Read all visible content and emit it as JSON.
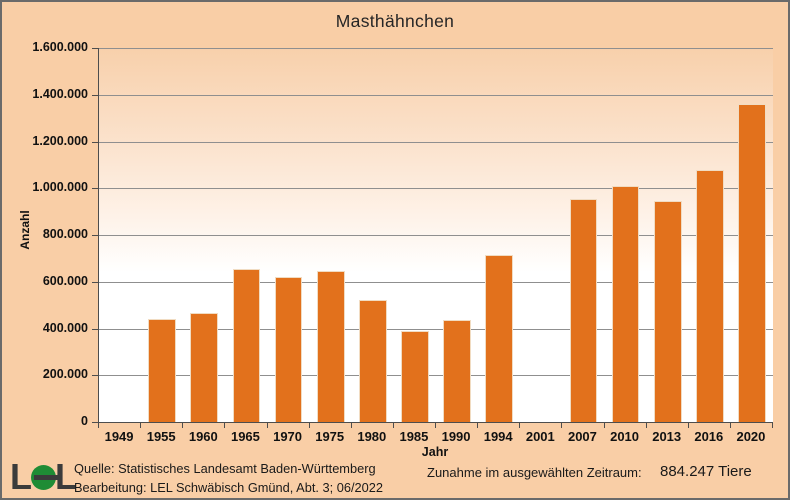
{
  "chart_data": {
    "type": "bar",
    "title": "Masthähnchen",
    "xlabel": "Jahr",
    "ylabel": "Anzahl",
    "categories": [
      "1949",
      "1955",
      "1960",
      "1965",
      "1970",
      "1975",
      "1980",
      "1985",
      "1990",
      "1994",
      "2001",
      "2007",
      "2010",
      "2013",
      "2016",
      "2020"
    ],
    "values": [
      0,
      441000,
      466000,
      655000,
      620000,
      646000,
      522000,
      390000,
      436000,
      714000,
      0,
      955000,
      1010000,
      945000,
      1080000,
      1360000
    ],
    "ylim": [
      0,
      1600000
    ],
    "ytick_step": 200000,
    "ytick_labels_top_to_bottom": [
      "1.600.000",
      "1.400.000",
      "1.200.000",
      "1.000.000",
      "800.000",
      "600.000",
      "400.000",
      "200.000",
      "0"
    ],
    "bar_color": "#E2711C",
    "gridlines": true,
    "legend": "none"
  },
  "footer": {
    "logo_text_left": "L",
    "logo_text_right": "L",
    "source_line1": "Quelle: Statistisches Landesamt Baden-Württemberg",
    "source_line2": "Bearbeitung: LEL Schwäbisch Gmünd, Abt. 3; 06/2022",
    "increase_label": "Zunahme im ausgewählten Zeitraum:",
    "increase_value": "884.247 Tiere"
  },
  "colors": {
    "page_background": "#F9CEA6",
    "plot_gradient_top": "#F8D0AB",
    "plot_gradient_bottom": "#FFFFFF",
    "bar": "#E2711C",
    "gridline": "#8F8F8F",
    "axis": "#4D4D4D",
    "logo_green": "#1F8C35"
  }
}
